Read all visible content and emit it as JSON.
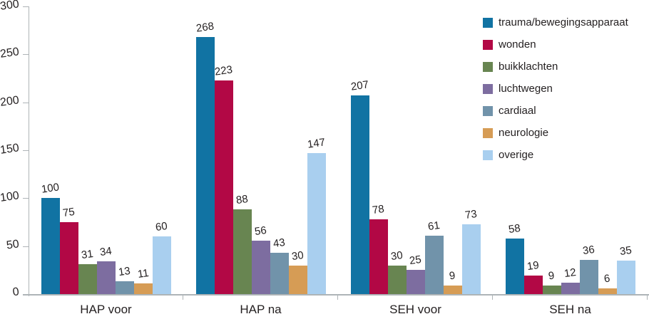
{
  "chart_data": {
    "type": "bar",
    "title": "",
    "xlabel": "",
    "ylabel": "",
    "ylim": [
      0,
      300
    ],
    "yticks": [
      0,
      50,
      100,
      150,
      200,
      250,
      300
    ],
    "grid": false,
    "legend_position": "top-right",
    "categories": [
      "HAP voor",
      "HAP na",
      "SEH voor",
      "SEH na"
    ],
    "series": [
      {
        "name": "trauma/bewegingsapparaat",
        "color": "#1173a3",
        "values": [
          100,
          268,
          207,
          58
        ]
      },
      {
        "name": "wonden",
        "color": "#b20845",
        "values": [
          75,
          223,
          78,
          19
        ]
      },
      {
        "name": "buikklachten",
        "color": "#688551",
        "values": [
          31,
          88,
          30,
          9
        ]
      },
      {
        "name": "luchtwegen",
        "color": "#7d6da0",
        "values": [
          34,
          56,
          25,
          12
        ]
      },
      {
        "name": "cardiaal",
        "color": "#7193aa",
        "values": [
          13,
          43,
          61,
          36
        ]
      },
      {
        "name": "neurologie",
        "color": "#d69c55",
        "values": [
          11,
          30,
          9,
          6
        ]
      },
      {
        "name": "overige",
        "color": "#a9cfef",
        "values": [
          60,
          147,
          73,
          35
        ]
      }
    ],
    "colors": {
      "axis": "#aeb4b7",
      "text": "#231f20",
      "background": "#ffffff"
    }
  }
}
